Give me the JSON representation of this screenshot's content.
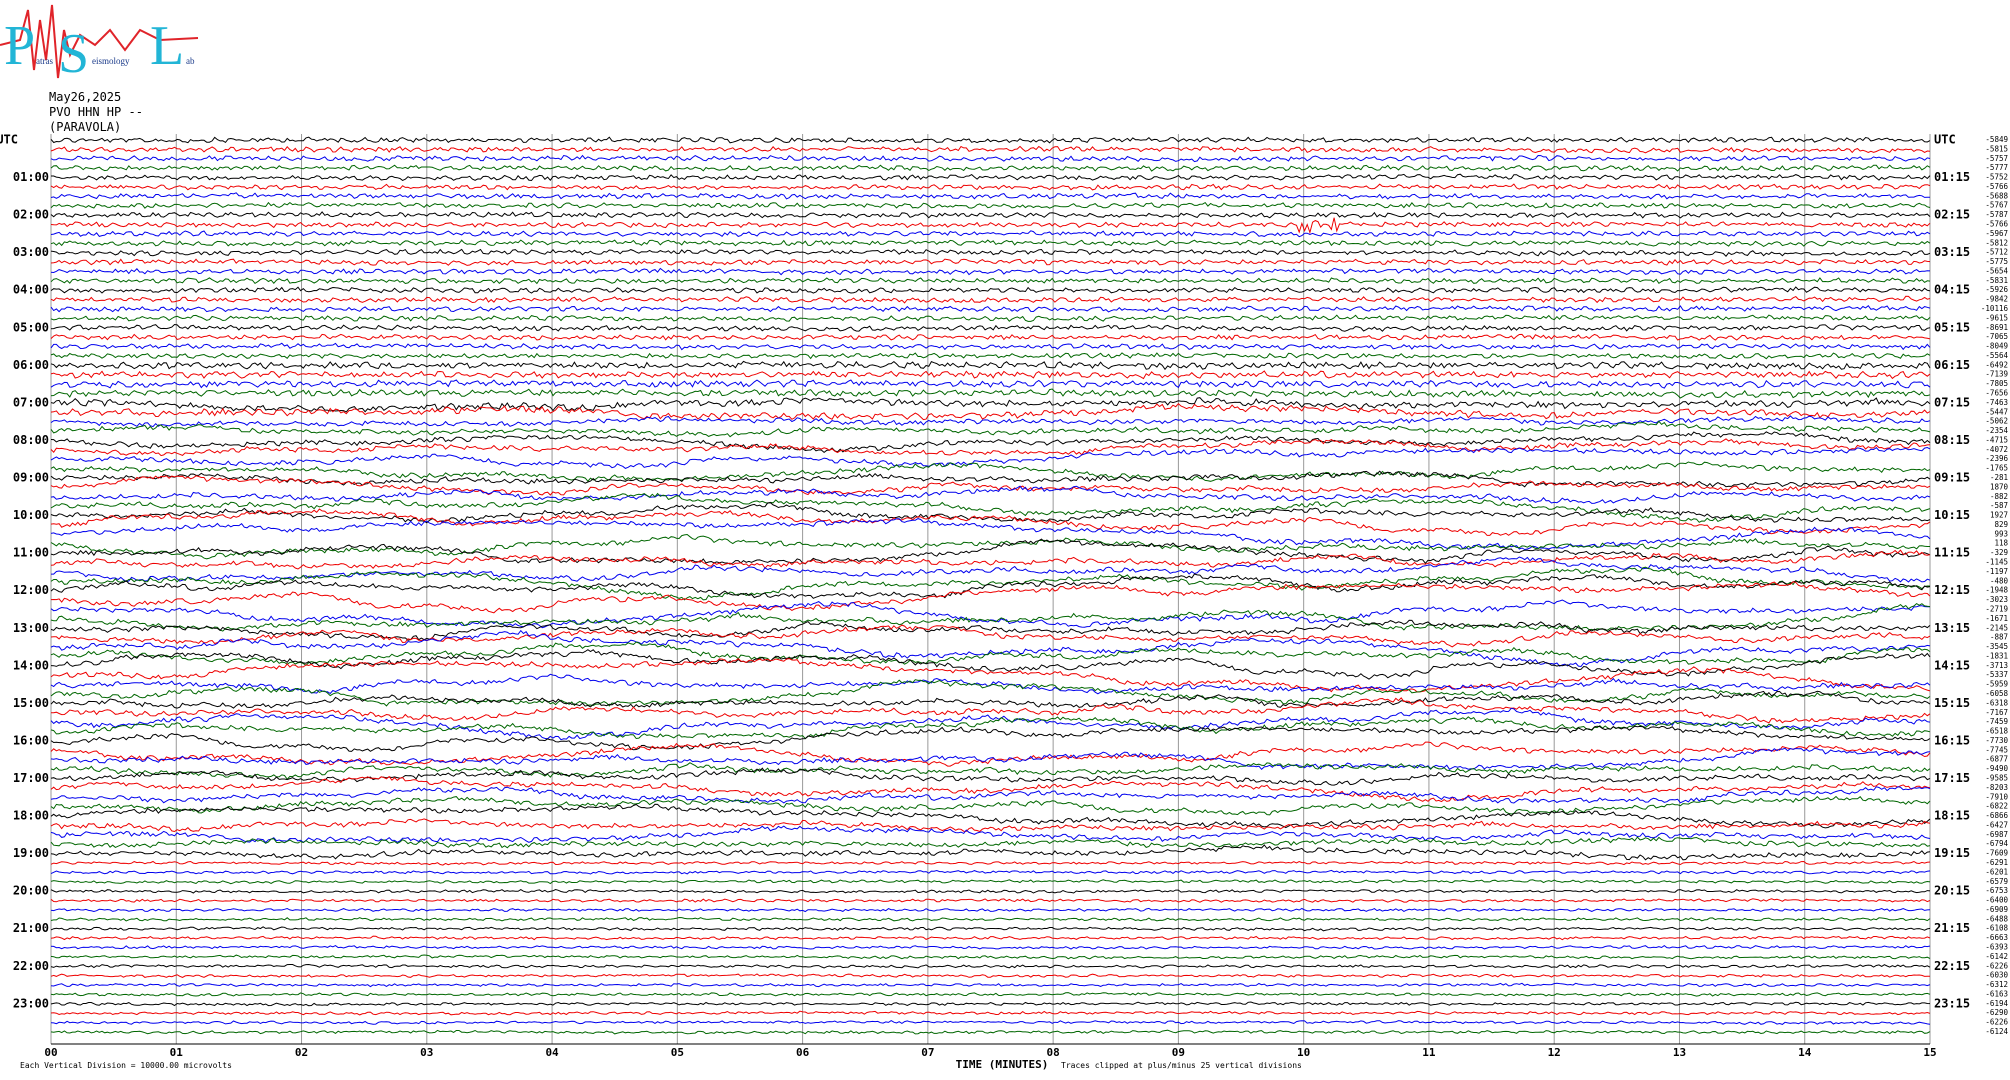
{
  "logo": {
    "letters": [
      "P",
      "S",
      "L"
    ],
    "suffixes": [
      "atras",
      "eismology",
      "ab"
    ]
  },
  "header": {
    "date": "May26,2025",
    "station": "PVO HHN HP --",
    "location": "(PARAVOLA)"
  },
  "plot": {
    "left_labels": [
      "UTC",
      "01:00",
      "02:00",
      "03:00",
      "04:00",
      "05:00",
      "06:00",
      "07:00",
      "08:00",
      "09:00",
      "10:00",
      "11:00",
      "12:00",
      "13:00",
      "14:00",
      "15:00",
      "16:00",
      "17:00",
      "18:00",
      "19:00",
      "20:00",
      "21:00",
      "22:00",
      "23:00"
    ],
    "right_labels": [
      "UTC",
      "01:15",
      "02:15",
      "03:15",
      "04:15",
      "05:15",
      "06:15",
      "07:15",
      "08:15",
      "09:15",
      "10:15",
      "11:15",
      "12:15",
      "13:15",
      "14:15",
      "15:15",
      "16:15",
      "17:15",
      "18:15",
      "19:15",
      "20:15",
      "21:15",
      "22:15",
      "23:15"
    ],
    "trace_values": [
      "-5849",
      "-5815",
      "-5757",
      "-5777",
      "-5752",
      "-5766",
      "-5688",
      "-5767",
      "-5787",
      "-5766",
      "-5967",
      "-5812",
      "-5712",
      "-5775",
      "-5654",
      "-5831",
      "-5926",
      "-9842",
      "-10116",
      "-9615",
      "-8691",
      "-7065",
      "-8049",
      "-5564",
      "-6492",
      "-7139",
      "-7805",
      "-7656",
      "-7463",
      "-5447",
      "-5062",
      "-2354",
      "-4715",
      "-4072",
      "-2396",
      "-1765",
      "-281",
      "1870",
      "-882",
      "-587",
      "1927",
      "829",
      "993",
      "118",
      "-329",
      "-1145",
      "-1197",
      "-480",
      "-1948",
      "-3023",
      "-2719",
      "-1671",
      "-2145",
      "-887",
      "-3545",
      "-1831",
      "-3713",
      "-5337",
      "-5959",
      "-6058",
      "-6318",
      "-7167",
      "-7459",
      "-6518",
      "-7730",
      "-7745",
      "-6877",
      "-9490",
      "-9585",
      "-8203",
      "-7910",
      "-6822",
      "-6866",
      "-6427",
      "-6987",
      "-6794",
      "-7609",
      "-6291",
      "-6201",
      "-6579",
      "-6753",
      "-6400",
      "-6909",
      "-6488",
      "-6108",
      "-6663",
      "-6393",
      "-6142",
      "-6226",
      "-6030",
      "-6312",
      "-6163",
      "-6194",
      "-6290",
      "-6226",
      "-6124"
    ],
    "x_ticks": [
      "00",
      "01",
      "02",
      "03",
      "04",
      "05",
      "06",
      "07",
      "08",
      "09",
      "10",
      "11",
      "12",
      "13",
      "14",
      "15"
    ]
  },
  "footer": {
    "scale": "Each Vertical Division = 10000.00 microvolts",
    "x_label": "TIME (MINUTES)",
    "clip": "Traces clipped at plus/minus 25 vertical divisions"
  }
}
